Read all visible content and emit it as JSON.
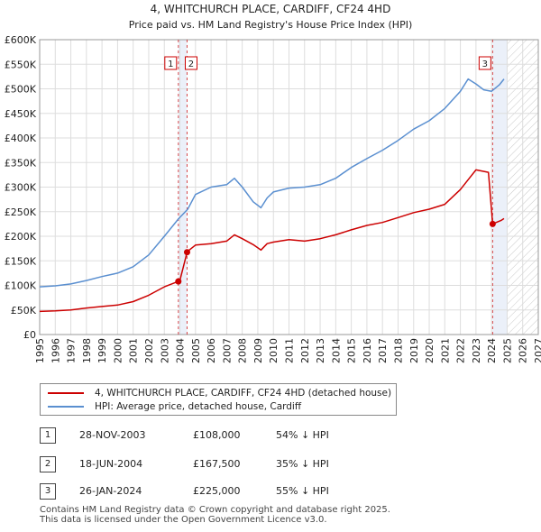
{
  "chart_data": {
    "type": "line",
    "title": "4, WHITCHURCH PLACE, CARDIFF, CF24 4HD",
    "subtitle": "Price paid vs. HM Land Registry's House Price Index (HPI)",
    "xlim": [
      1995,
      2027
    ],
    "ylim": [
      0,
      600000
    ],
    "x_ticks": [
      1995,
      1996,
      1997,
      1998,
      1999,
      2000,
      2001,
      2002,
      2003,
      2004,
      2005,
      2006,
      2007,
      2008,
      2009,
      2010,
      2011,
      2012,
      2013,
      2014,
      2015,
      2016,
      2017,
      2018,
      2019,
      2020,
      2021,
      2022,
      2023,
      2024,
      2025,
      2026,
      2027
    ],
    "y_ticks": [
      0,
      50000,
      100000,
      150000,
      200000,
      250000,
      300000,
      350000,
      400000,
      450000,
      500000,
      550000,
      600000
    ],
    "y_tick_labels": [
      "£0",
      "£50K",
      "£100K",
      "£150K",
      "£200K",
      "£250K",
      "£300K",
      "£350K",
      "£400K",
      "£450K",
      "£500K",
      "£550K",
      "£600K"
    ],
    "grid": true,
    "future_shade_from": 2025.0,
    "series": [
      {
        "name": "4, WHITCHURCH PLACE, CARDIFF, CF24 4HD (detached house)",
        "color": "#cc0000",
        "x": [
          1995.0,
          1996.0,
          1997.0,
          1998.0,
          1999.0,
          2000.0,
          2001.0,
          2002.0,
          2003.0,
          2003.9,
          2004.0,
          2004.46,
          2004.6,
          2005.0,
          2006.0,
          2007.0,
          2007.5,
          2008.0,
          2008.7,
          2009.2,
          2009.6,
          2010.0,
          2011.0,
          2012.0,
          2013.0,
          2014.0,
          2015.0,
          2016.0,
          2017.0,
          2018.0,
          2019.0,
          2020.0,
          2021.0,
          2022.0,
          2022.5,
          2023.0,
          2023.8,
          2024.07,
          2024.3,
          2024.6,
          2024.8
        ],
        "y": [
          47000,
          48000,
          50000,
          54000,
          57000,
          60000,
          67000,
          80000,
          97000,
          108000,
          110000,
          167500,
          172000,
          182000,
          185000,
          190000,
          203000,
          195000,
          183000,
          172000,
          185000,
          188000,
          193000,
          190000,
          195000,
          203000,
          213000,
          222000,
          228000,
          238000,
          248000,
          255000,
          265000,
          295000,
          315000,
          335000,
          330000,
          225000,
          228000,
          232000,
          236000
        ]
      },
      {
        "name": "HPI: Average price, detached house, Cardiff",
        "color": "#5a8fd0",
        "x": [
          1995.0,
          1996.0,
          1997.0,
          1998.0,
          1999.0,
          2000.0,
          2001.0,
          2002.0,
          2003.0,
          2003.9,
          2004.5,
          2005.0,
          2006.0,
          2007.0,
          2007.5,
          2008.0,
          2008.7,
          2009.2,
          2009.6,
          2010.0,
          2011.0,
          2012.0,
          2013.0,
          2014.0,
          2015.0,
          2016.0,
          2017.0,
          2018.0,
          2019.0,
          2020.0,
          2021.0,
          2022.0,
          2022.5,
          2023.0,
          2023.5,
          2024.0,
          2024.5,
          2024.8
        ],
        "y": [
          97000,
          99000,
          103000,
          110000,
          118000,
          125000,
          138000,
          162000,
          200000,
          235000,
          255000,
          285000,
          300000,
          305000,
          318000,
          300000,
          270000,
          258000,
          278000,
          290000,
          298000,
          300000,
          305000,
          318000,
          340000,
          358000,
          375000,
          395000,
          418000,
          435000,
          460000,
          495000,
          520000,
          510000,
          498000,
          495000,
          508000,
          520000
        ]
      }
    ],
    "markers": [
      {
        "label": "1",
        "x": 2003.9,
        "y": 108000
      },
      {
        "label": "2",
        "x": 2004.46,
        "y": 167500
      },
      {
        "label": "3",
        "x": 2024.07,
        "y": 225000
      }
    ],
    "legend_position": "below"
  },
  "legend": {
    "red_label": "4, WHITCHURCH PLACE, CARDIFF, CF24 4HD (detached house)",
    "blue_label": "HPI: Average price, detached house, Cardiff"
  },
  "sales": [
    {
      "num": "1",
      "date": "28-NOV-2003",
      "price": "£108,000",
      "hpi": "54% ↓ HPI"
    },
    {
      "num": "2",
      "date": "18-JUN-2004",
      "price": "£167,500",
      "hpi": "35% ↓ HPI"
    },
    {
      "num": "3",
      "date": "26-JAN-2024",
      "price": "£225,000",
      "hpi": "55% ↓ HPI"
    }
  ],
  "footer": {
    "line1": "Contains HM Land Registry data © Crown copyright and database right 2025.",
    "line2": "This data is licensed under the Open Government Licence v3.0."
  }
}
